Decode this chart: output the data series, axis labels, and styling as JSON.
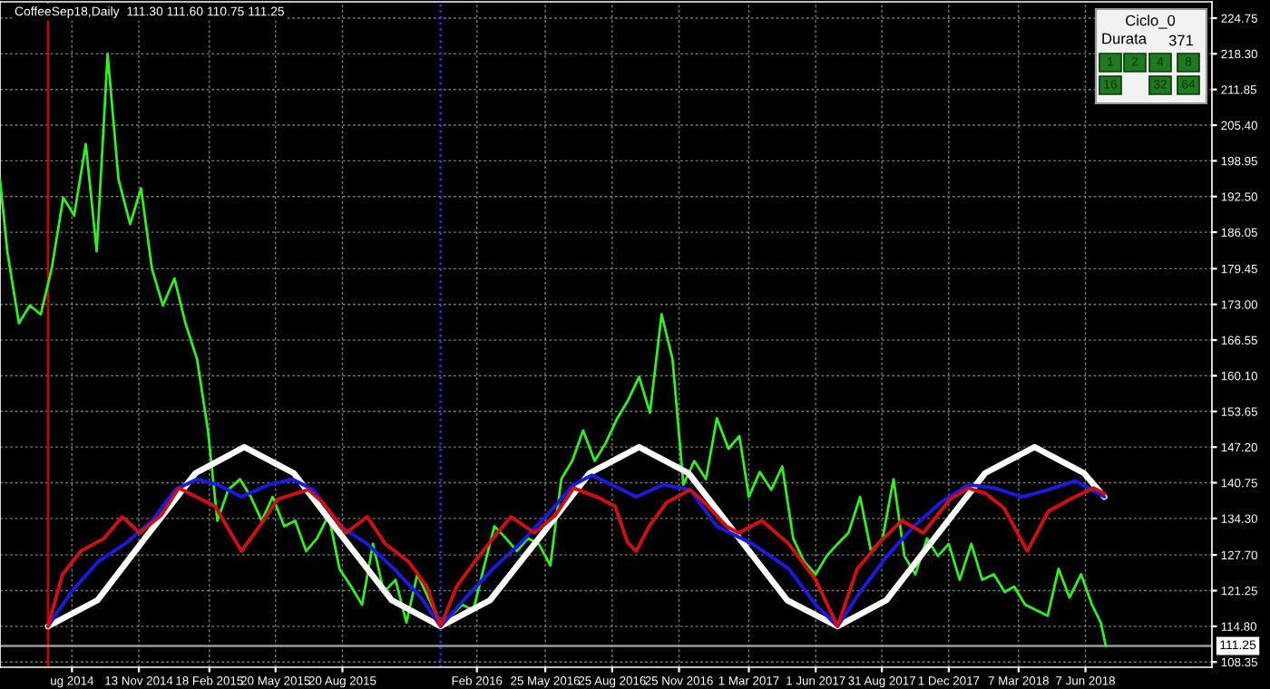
{
  "chart_data": {
    "type": "line",
    "title": "CoffeeSep18,Daily  111.30 111.60 110.75 111.25",
    "annotations": [
      "Ciclo_0",
      "Durata",
      "371",
      "1",
      "2",
      "4",
      "8",
      "16",
      "32",
      "64"
    ],
    "xlim": [
      "2014-05-06",
      "2018-11-28"
    ],
    "xticks": [
      {
        "value": "2014-08-13",
        "label": "ug 2014"
      },
      {
        "value": "2014-11-13",
        "label": "13 Nov 2014"
      },
      {
        "value": "2015-02-18",
        "label": "18 Feb 2015"
      },
      {
        "value": "2015-05-20",
        "label": "20 May 2015"
      },
      {
        "value": "2015-08-20",
        "label": "20 Aug 2015"
      },
      {
        "value": "2016-02-21",
        "label": "Feb 2016"
      },
      {
        "value": "2016-05-25",
        "label": "25 May 2016"
      },
      {
        "value": "2016-08-25",
        "label": "25 Aug 2016"
      },
      {
        "value": "2016-11-25",
        "label": "25 Nov 2016"
      },
      {
        "value": "2017-03-01",
        "label": "1 Mar 2017"
      },
      {
        "value": "2017-06-01",
        "label": "1 Jun 2017"
      },
      {
        "value": "2017-08-31",
        "label": "31 Aug 2017"
      },
      {
        "value": "2017-12-01",
        "label": "1 Dec 2017"
      },
      {
        "value": "2018-03-07",
        "label": "7 Mar 2018"
      },
      {
        "value": "2018-06-07",
        "label": "7 Jun 2018"
      }
    ],
    "ylim": [
      107.4,
      227.7
    ],
    "yticks": [
      108.35,
      {
        "value": 114.8,
        "label": "114.80"
      },
      121.25,
      {
        "value": 127.7,
        "label": "127.70"
      },
      {
        "value": 134.3,
        "label": "134.30"
      },
      140.75,
      {
        "value": 147.2,
        "label": "147.20"
      },
      153.65,
      {
        "value": 160.1,
        "label": "160.10"
      },
      166.55,
      {
        "value": 173.0,
        "label": "173.00"
      },
      179.45,
      186.05,
      {
        "value": 192.5,
        "label": "192.50"
      },
      198.95,
      {
        "value": 205.4,
        "label": "205.40"
      },
      211.85,
      {
        "value": 218.3,
        "label": "218.30"
      },
      224.75
    ],
    "grid": true,
    "ref_lines": [
      {
        "axis": "x",
        "value": "2014-07-11",
        "color": "#d00000",
        "line_style": "solid"
      },
      {
        "axis": "x",
        "value": "2016-01-02",
        "color": "#3030ff",
        "line_style": "dotted"
      },
      {
        "axis": "y",
        "value": 111.25,
        "label": "111.25",
        "color": "#9a9a9a",
        "line_style": "solid"
      }
    ],
    "series": [
      {
        "color": "#33ee22",
        "x": [
          "2014-05-06",
          "2014-05-16",
          "2014-06-01",
          "2014-06-16",
          "2014-07-01",
          "2014-07-16",
          "2014-08-01",
          "2014-08-16",
          "2014-09-01",
          "2014-09-16",
          "2014-10-01",
          "2014-10-16",
          "2014-11-01",
          "2014-11-16",
          "2014-12-01",
          "2014-12-16",
          "2015-01-01",
          "2015-01-16",
          "2015-02-01",
          "2015-02-16",
          "2015-03-01",
          "2015-03-16",
          "2015-04-01",
          "2015-04-16",
          "2015-05-01",
          "2015-05-16",
          "2015-06-01",
          "2015-06-16",
          "2015-07-01",
          "2015-07-16",
          "2015-08-01",
          "2015-08-16",
          "2015-09-01",
          "2015-09-16",
          "2015-10-01",
          "2015-10-16",
          "2015-11-01",
          "2015-11-16",
          "2015-12-01",
          "2015-12-16",
          "2016-01-01",
          "2016-01-16",
          "2016-02-01",
          "2016-02-16",
          "2016-03-01",
          "2016-03-16",
          "2016-04-01",
          "2016-04-16",
          "2016-05-01",
          "2016-05-16",
          "2016-06-01",
          "2016-06-16",
          "2016-07-01",
          "2016-07-16",
          "2016-08-01",
          "2016-08-16",
          "2016-09-01",
          "2016-09-16",
          "2016-10-01",
          "2016-10-16",
          "2016-11-01",
          "2016-11-16",
          "2016-12-01",
          "2016-12-16",
          "2017-01-01",
          "2017-01-16",
          "2017-02-01",
          "2017-02-16",
          "2017-03-01",
          "2017-03-16",
          "2017-04-01",
          "2017-04-16",
          "2017-05-01",
          "2017-05-16",
          "2017-06-01",
          "2017-06-16",
          "2017-07-01",
          "2017-07-16",
          "2017-08-01",
          "2017-08-16",
          "2017-09-01",
          "2017-09-16",
          "2017-10-01",
          "2017-10-16",
          "2017-11-01",
          "2017-11-16",
          "2017-12-01",
          "2017-12-16",
          "2018-01-01",
          "2018-01-16",
          "2018-02-01",
          "2018-02-16",
          "2018-03-01",
          "2018-03-16",
          "2018-04-01",
          "2018-04-16",
          "2018-05-01",
          "2018-05-16",
          "2018-06-01",
          "2018-06-16",
          "2018-06-28",
          "2018-07-05"
        ],
        "values": [
          195.6,
          182.6,
          169.6,
          172.8,
          171.2,
          179.4,
          192.3,
          189.1,
          202.0,
          182.6,
          218.3,
          195.6,
          187.5,
          194.0,
          179.4,
          172.8,
          177.7,
          169.6,
          163.1,
          150.2,
          133.9,
          139.5,
          141.4,
          138.2,
          133.9,
          138.2,
          132.9,
          133.9,
          128.4,
          130.7,
          134.9,
          125.2,
          122.0,
          118.7,
          129.7,
          121.0,
          123.2,
          115.5,
          124.2,
          120.0,
          115.5,
          116.7,
          118.7,
          117.7,
          125.2,
          132.9,
          130.7,
          128.4,
          130.7,
          129.7,
          125.8,
          141.4,
          144.7,
          150.2,
          144.7,
          147.9,
          152.4,
          155.7,
          159.9,
          153.4,
          171.2,
          163.1,
          140.4,
          144.7,
          141.4,
          152.4,
          146.9,
          149.2,
          138.2,
          142.7,
          139.5,
          143.7,
          130.7,
          126.5,
          124.2,
          127.5,
          129.7,
          131.7,
          138.2,
          128.4,
          130.7,
          141.4,
          127.5,
          124.2,
          130.7,
          127.5,
          129.7,
          123.2,
          129.7,
          123.2,
          124.2,
          121.0,
          122.0,
          118.7,
          117.7,
          116.7,
          125.2,
          120.0,
          124.2,
          118.7,
          115.5,
          111.25
        ]
      },
      {
        "color": "#ffffff",
        "x": [
          "2014-07-11",
          "2014-09-17",
          "2014-11-23",
          "2015-01-30",
          "2015-04-07",
          "2015-06-14",
          "2015-08-20",
          "2015-10-27",
          "2016-01-02",
          "2016-03-10",
          "2016-05-18",
          "2016-07-25",
          "2016-10-01",
          "2016-12-08",
          "2017-02-14",
          "2017-04-23",
          "2017-07-01",
          "2017-09-06",
          "2017-11-13",
          "2018-01-20",
          "2018-03-29",
          "2018-06-05",
          "2018-07-03"
        ],
        "values": [
          114.8,
          119.5,
          131.0,
          142.5,
          147.2,
          142.5,
          131.0,
          119.5,
          114.8,
          119.5,
          131.0,
          142.5,
          147.2,
          142.5,
          131.0,
          119.5,
          114.8,
          119.5,
          131.0,
          142.5,
          147.2,
          142.5,
          138.2
        ]
      },
      {
        "color": "#1a1ae0",
        "x": [
          "2014-07-11",
          "2014-08-12",
          "2014-09-18",
          "2014-10-25",
          "2014-12-01",
          "2015-01-02",
          "2015-02-01",
          "2015-03-02",
          "2015-04-03",
          "2015-05-11",
          "2015-06-12",
          "2015-07-11",
          "2015-08-17",
          "2015-09-23",
          "2015-10-30",
          "2015-12-06",
          "2016-01-02",
          "2016-02-06",
          "2016-03-14",
          "2016-04-20",
          "2016-05-27",
          "2016-07-03",
          "2016-07-28",
          "2016-09-03",
          "2016-09-27",
          "2016-11-03",
          "2016-12-10",
          "2017-01-16",
          "2017-03-06",
          "2017-04-25",
          "2017-06-01",
          "2017-07-01",
          "2017-08-01",
          "2017-09-07",
          "2017-10-14",
          "2017-11-20",
          "2017-12-28",
          "2018-02-02",
          "2018-03-12",
          "2018-04-17",
          "2018-05-24",
          "2018-07-03"
        ],
        "values": [
          114.8,
          121.0,
          126.5,
          129.7,
          133.9,
          139.5,
          141.4,
          140.4,
          138.2,
          140.4,
          141.4,
          139.5,
          132.9,
          129.7,
          125.2,
          120.0,
          114.8,
          120.0,
          125.2,
          129.7,
          134.9,
          140.4,
          142.1,
          139.8,
          138.2,
          140.4,
          139.5,
          132.9,
          129.7,
          125.2,
          118.7,
          114.8,
          121.0,
          127.5,
          132.9,
          137.2,
          140.4,
          139.8,
          138.2,
          139.5,
          141.1,
          138.2
        ]
      },
      {
        "color": "#d01010",
        "x": [
          "2014-07-11",
          "2014-07-31",
          "2014-08-25",
          "2014-09-26",
          "2014-10-21",
          "2014-11-14",
          "2014-12-14",
          "2015-01-07",
          "2015-02-06",
          "2015-02-26",
          "2015-04-03",
          "2015-04-28",
          "2015-05-23",
          "2015-07-04",
          "2015-07-24",
          "2015-08-25",
          "2015-09-23",
          "2015-10-18",
          "2015-11-19",
          "2015-12-14",
          "2016-01-02",
          "2016-01-24",
          "2016-02-18",
          "2016-03-14",
          "2016-04-08",
          "2016-05-10",
          "2016-06-08",
          "2016-07-03",
          "2016-08-04",
          "2016-08-29",
          "2016-09-15",
          "2016-09-27",
          "2016-10-15",
          "2016-11-08",
          "2016-12-10",
          "2016-12-30",
          "2017-01-29",
          "2017-02-15",
          "2017-03-19",
          "2017-04-25",
          "2017-06-01",
          "2017-07-01",
          "2017-07-28",
          "2017-08-26",
          "2017-09-27",
          "2017-10-27",
          "2017-12-03",
          "2017-12-28",
          "2018-01-21",
          "2018-02-15",
          "2018-03-19",
          "2018-04-17",
          "2018-05-17",
          "2018-06-18",
          "2018-07-03"
        ],
        "values": [
          114.8,
          124.2,
          128.4,
          130.7,
          134.6,
          131.7,
          134.9,
          139.8,
          137.8,
          136.5,
          128.4,
          132.9,
          137.8,
          139.5,
          137.2,
          131.7,
          134.6,
          129.7,
          126.5,
          122.0,
          114.8,
          122.0,
          126.5,
          130.7,
          134.6,
          131.7,
          134.9,
          139.8,
          138.2,
          136.5,
          130.0,
          128.4,
          132.9,
          137.2,
          139.5,
          137.2,
          132.9,
          131.7,
          133.9,
          129.7,
          123.2,
          114.8,
          125.2,
          129.7,
          133.9,
          131.7,
          137.8,
          139.8,
          138.8,
          136.2,
          128.4,
          135.6,
          137.8,
          139.8,
          138.8
        ]
      }
    ]
  }
}
